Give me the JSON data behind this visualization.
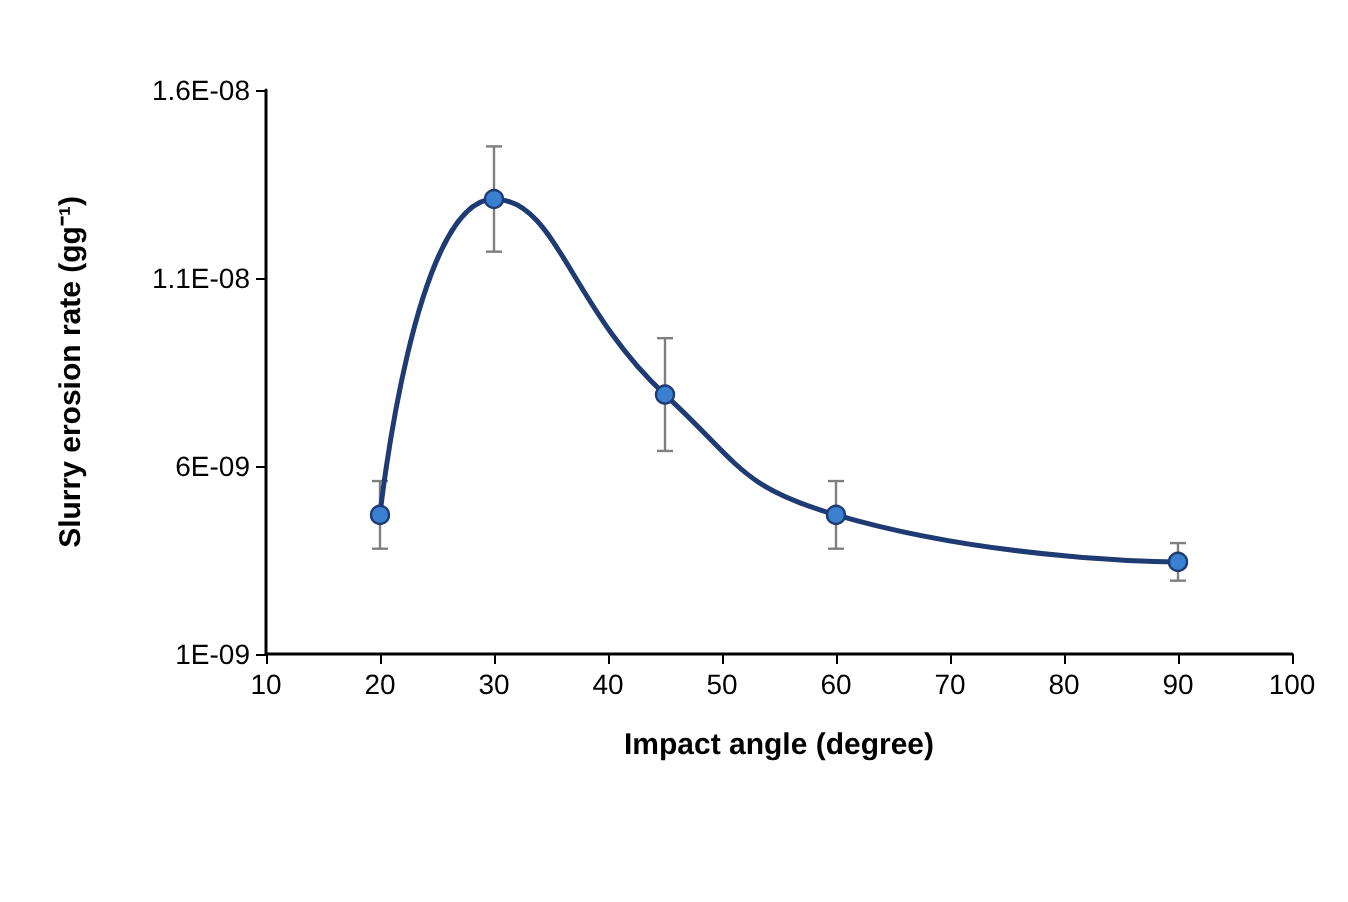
{
  "chart_data": {
    "type": "line",
    "xlabel": "Impact angle (degree)",
    "ylabel": "Slurry erosion rate (gg⁻¹)",
    "x": [
      20,
      30,
      45,
      60,
      90
    ],
    "series": [
      {
        "color": "#1f3b73",
        "values": [
          4.7e-09,
          1.31e-08,
          7.9e-09,
          4.7e-09,
          3.45e-09
        ],
        "errors": [
          9e-10,
          1.4e-09,
          1.5e-09,
          9e-10,
          5e-10
        ]
      }
    ],
    "xlim": [
      10,
      100
    ],
    "xticks": [
      10,
      20,
      30,
      40,
      50,
      60,
      70,
      80,
      90,
      100
    ],
    "ylim": [
      1e-09,
      1.6e-08
    ],
    "yticks": [
      {
        "value": 1e-09,
        "label": "1E-09"
      },
      {
        "value": 6e-09,
        "label": "6E-09"
      },
      {
        "value": 1.1e-08,
        "label": "1.1E-08"
      },
      {
        "value": 1.6e-08,
        "label": "1.6E-08"
      }
    ],
    "marker": "circle",
    "line_style": "solid"
  }
}
